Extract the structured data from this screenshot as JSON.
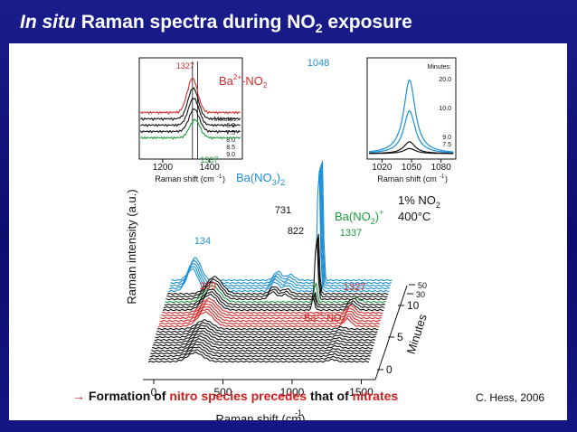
{
  "slide": {
    "title_italic": "In situ",
    "title_main": "Raman spectra during NO",
    "title_sub": "2",
    "title_end": "exposure",
    "caption_arrow": "→",
    "caption_part1": "Formation of",
    "caption_red1": "nitro species precedes",
    "caption_part2": "that of",
    "caption_red2": "nitrates",
    "citation": "C. Hess, 2006"
  },
  "colors": {
    "blue": "#1e90d6",
    "red": "#d42a2a",
    "green": "#1d9a3a",
    "black": "#111111"
  },
  "chart_data": [
    {
      "type": "line",
      "xlabel": "Raman shift (cm-1)",
      "ylabel": "Raman intensity (a.u.)",
      "x_ticks": [
        0,
        500,
        1000,
        1500
      ],
      "xlim": [
        -100,
        1650
      ],
      "time_axis_label": "Minutes",
      "time_ticks": [
        "0",
        "5",
        "10",
        "30",
        "50"
      ],
      "peak_labels": [
        "134",
        "259",
        "731",
        "822",
        "1048",
        "1337",
        "1327"
      ],
      "annotations": [
        "Ba(NO3)2",
        "Ba(NO2)+",
        "1% NO2",
        "400°C",
        "Ba2+-NO2-"
      ],
      "series_groups": [
        {
          "color": "black",
          "count": 13,
          "peaks": [
            {
              "x": 300,
              "h": 0.22
            },
            {
              "x": 1290,
              "h": 0.05
            }
          ]
        },
        {
          "color": "red",
          "count": 6,
          "peaks": [
            {
              "x": 300,
              "h": 0.35
            },
            {
              "x": 1327,
              "h": 0.18
            }
          ]
        },
        {
          "color": "black",
          "count": 3,
          "peaks": [
            {
              "x": 300,
              "h": 0.38
            },
            {
              "x": 1048,
              "h": 0.3
            },
            {
              "x": 1327,
              "h": 0.15
            }
          ]
        },
        {
          "color": "green",
          "count": 1,
          "peaks": [
            {
              "x": 300,
              "h": 0.4
            },
            {
              "x": 1048,
              "h": 0.5
            },
            {
              "x": 1337,
              "h": 0.1
            }
          ]
        },
        {
          "color": "black",
          "count": 3,
          "peaks": [
            {
              "x": 300,
              "h": 0.42
            },
            {
              "x": 731,
              "h": 0.18
            },
            {
              "x": 822,
              "h": 0.12
            },
            {
              "x": 1048,
              "h": 1.6
            }
          ]
        },
        {
          "color": "blue",
          "count": 5,
          "peaks": [
            {
              "x": 134,
              "h": 0.55
            },
            {
              "x": 731,
              "h": 0.22
            },
            {
              "x": 822,
              "h": 0.14
            },
            {
              "x": 1048,
              "h": 3.2
            }
          ]
        }
      ]
    },
    {
      "type": "line",
      "title": "Ba2+-NO2-",
      "xlabel": "Raman shift (cm-1)",
      "x_ticks": [
        1200,
        1400
      ],
      "xlim": [
        1100,
        1540
      ],
      "peak_labels": [
        "1327",
        "1337"
      ],
      "legend_title": "Minutes:",
      "series": [
        {
          "name": "6.0",
          "color": "red",
          "peak": 1327,
          "h": 0.95
        },
        {
          "name": "7.5",
          "color": "black",
          "peak": 1330,
          "h": 0.85
        },
        {
          "name": "8.0",
          "color": "black",
          "peak": 1332,
          "h": 0.75
        },
        {
          "name": "8.5",
          "color": "black",
          "peak": 1334,
          "h": 0.62
        },
        {
          "name": "9.0",
          "color": "green",
          "peak": 1337,
          "h": 0.5
        }
      ]
    },
    {
      "type": "line",
      "xlabel": "Raman shift (cm-1)",
      "x_ticks": [
        1020,
        1050,
        1080
      ],
      "xlim": [
        1005,
        1095
      ],
      "legend_title": "Minutes:",
      "series": [
        {
          "name": "20.0",
          "color": "blue",
          "h": 1.0
        },
        {
          "name": "10.0",
          "color": "blue",
          "h": 0.58
        },
        {
          "name": "9.0",
          "color": "black",
          "h": 0.16
        },
        {
          "name": "7.5",
          "color": "black",
          "h": 0.07
        }
      ]
    }
  ]
}
